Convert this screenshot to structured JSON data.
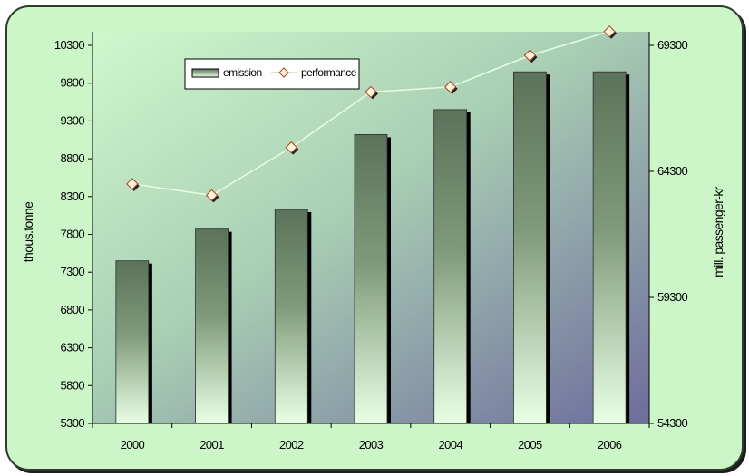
{
  "chart_data": {
    "type": "bar+line",
    "categories": [
      "2000",
      "2001",
      "2002",
      "2003",
      "2004",
      "2005",
      "2006"
    ],
    "series": [
      {
        "name": "emission",
        "type": "bar",
        "axis": "left",
        "values": [
          7450,
          7870,
          8130,
          9120,
          9450,
          9950,
          9950
        ]
      },
      {
        "name": "performance",
        "type": "line",
        "axis": "right",
        "values": [
          63800,
          63350,
          65250,
          67450,
          67650,
          68900,
          69850
        ]
      }
    ],
    "y_left": {
      "label": "thous.tonne",
      "range": [
        5300,
        10300
      ],
      "ticks": [
        5300,
        5800,
        6300,
        6800,
        7300,
        7800,
        8300,
        8800,
        9300,
        9800,
        10300
      ]
    },
    "y_right": {
      "label": "mill. passenger-kr",
      "range": [
        54300,
        69300
      ],
      "ticks": [
        54300,
        59300,
        64300,
        69300
      ]
    },
    "legend": {
      "position": "top-left",
      "entries": [
        "emission",
        "performance"
      ]
    },
    "grid": false,
    "colors": {
      "bar_top": "#5b7359",
      "bar_bottom": "#e8ffe4",
      "bar_shadow": "#000000",
      "line": "#e6ffe0",
      "marker_fill": "#fff7d6",
      "marker_stroke": "#b03a2e",
      "plot_bg_light": "#d0f7cc",
      "plot_bg_dark": "#6e6c9c"
    }
  }
}
